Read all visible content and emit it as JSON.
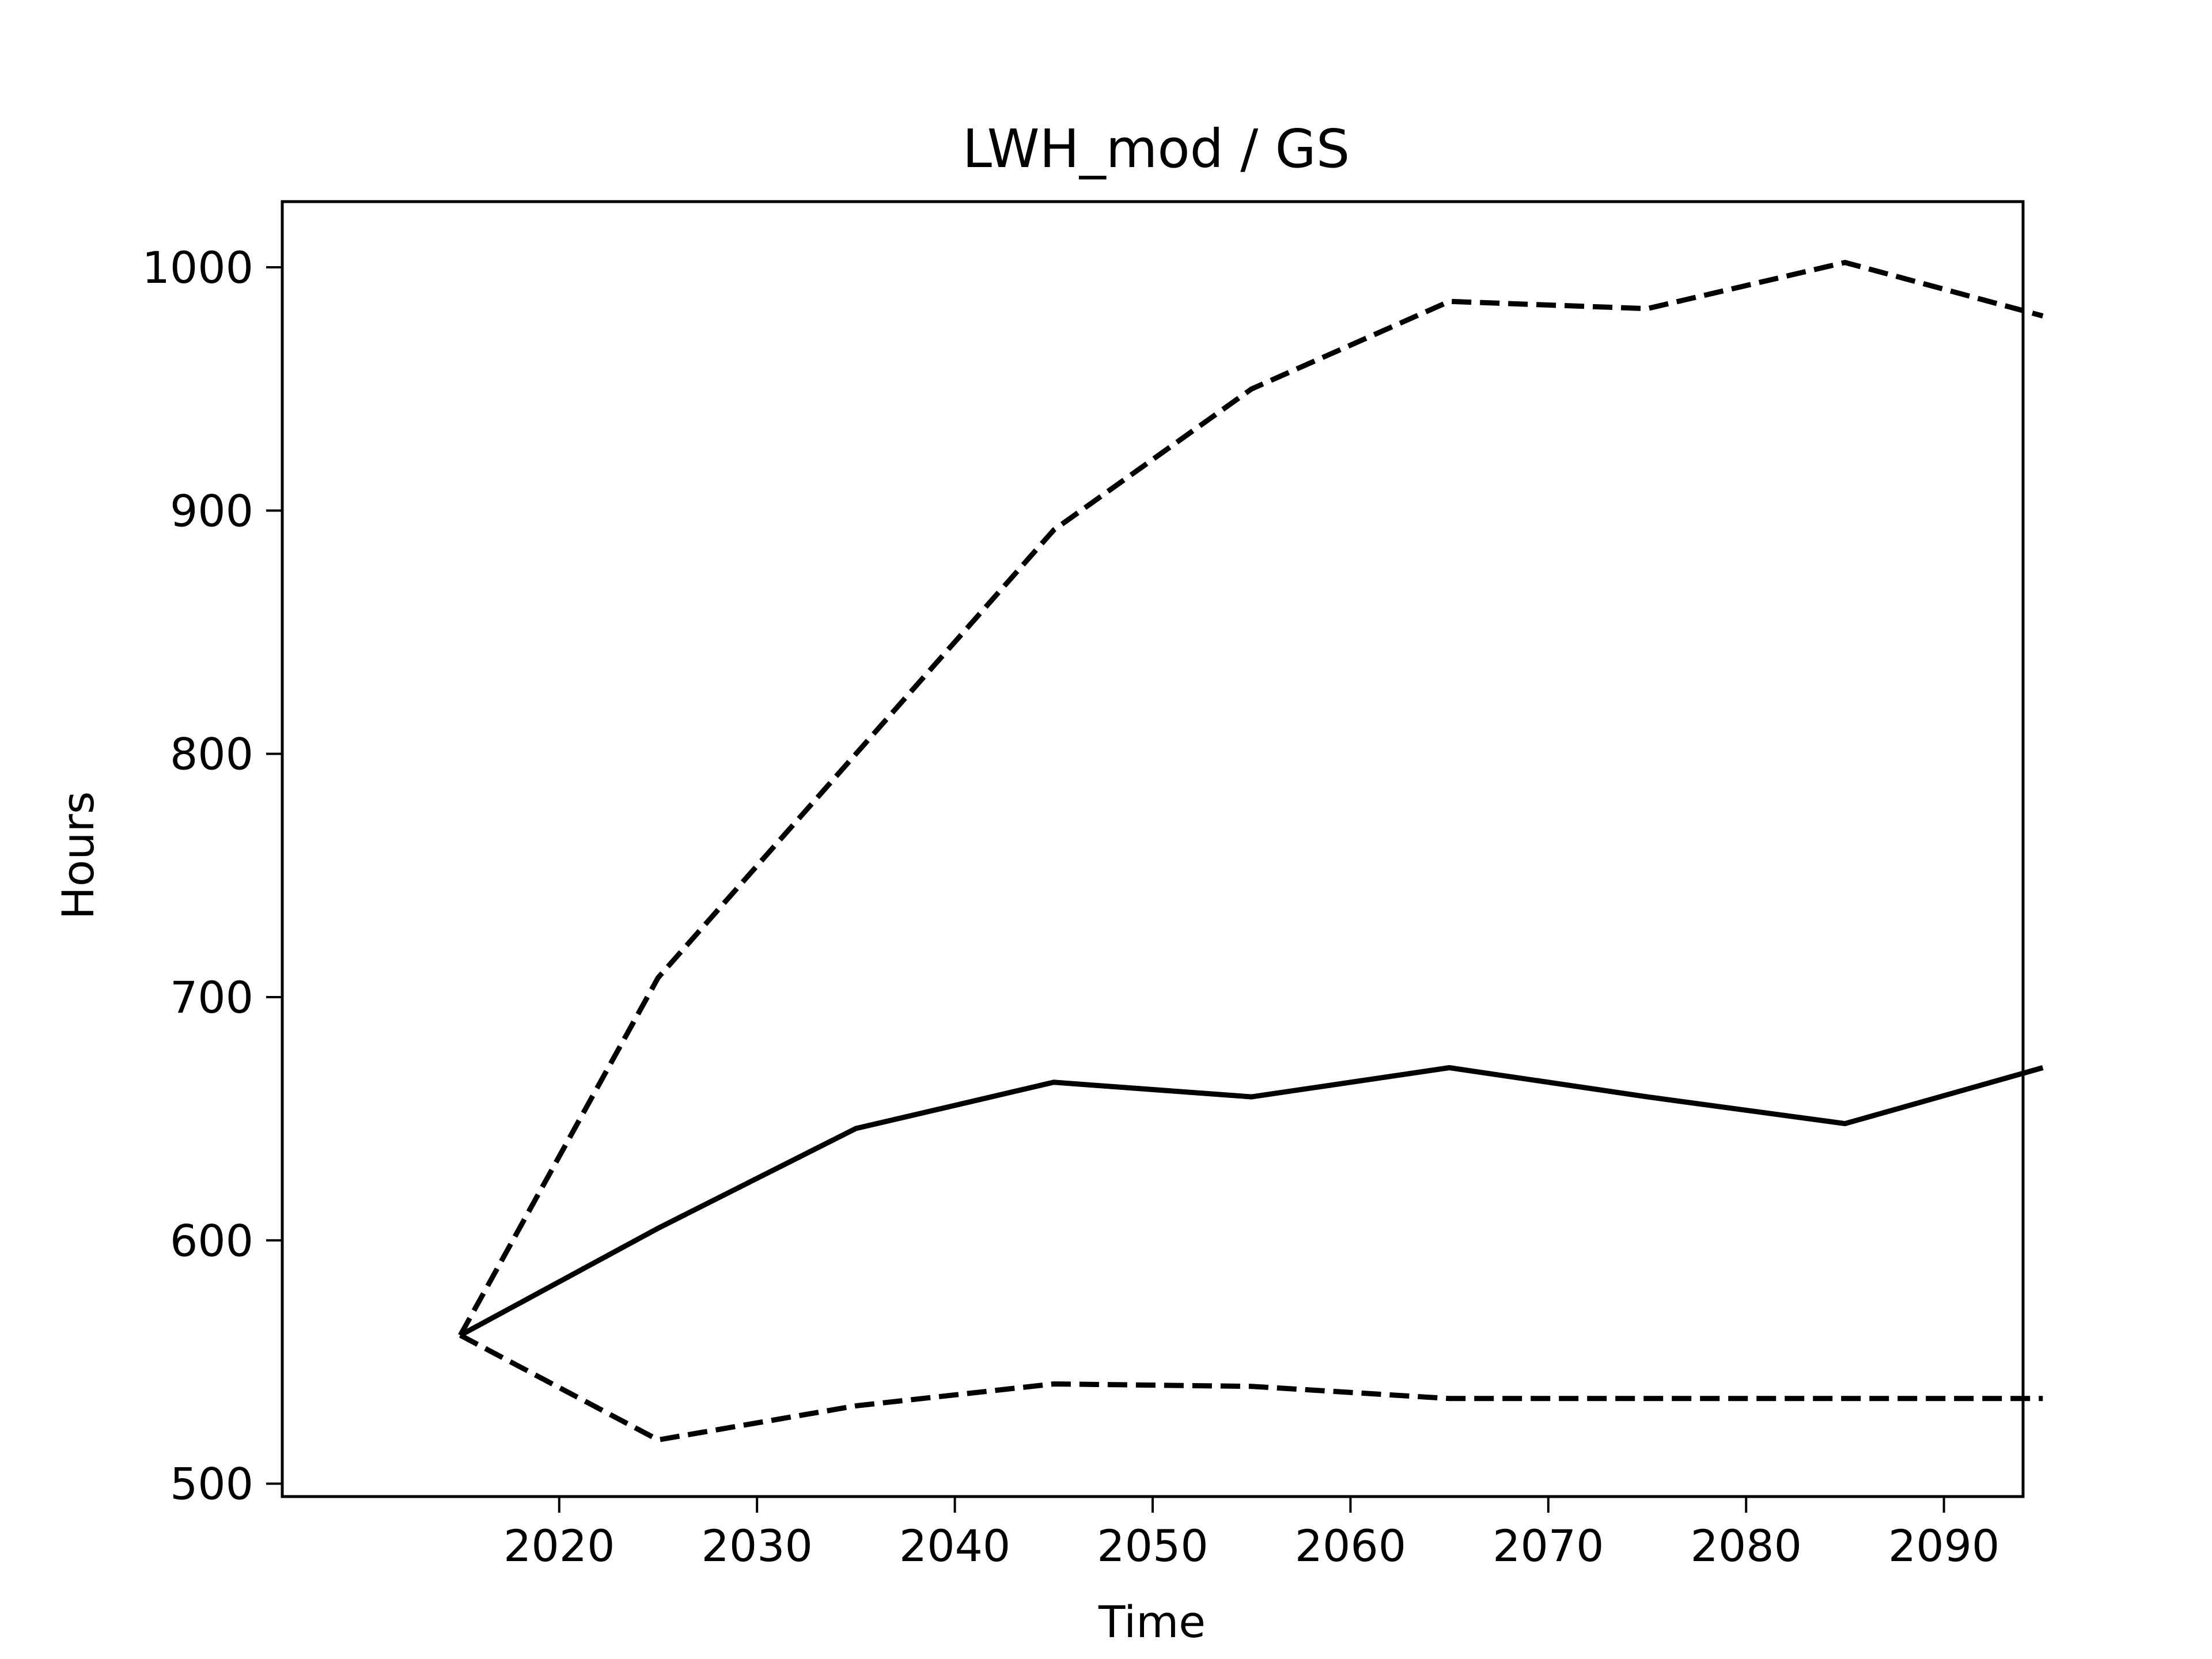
{
  "chart_data": {
    "type": "line",
    "title": "LWH_mod / GS",
    "xlabel": "Time",
    "ylabel": "Hours",
    "x": [
      2015,
      2025,
      2035,
      2045,
      2055,
      2065,
      2075,
      2085,
      2095
    ],
    "series": [
      {
        "style": "solid",
        "values": [
          561,
          605,
          646,
          665,
          659,
          671,
          659,
          648,
          671
        ]
      },
      {
        "style": "dashed",
        "values": [
          561,
          708,
          800,
          892,
          950,
          986,
          983,
          1002,
          980
        ]
      },
      {
        "style": "dashed",
        "values": [
          561,
          518,
          532,
          541,
          540,
          535,
          535,
          535,
          535
        ]
      }
    ],
    "xlim": [
      2006,
      2094
    ],
    "ylim": [
      494.7,
      1027
    ],
    "xticks": [
      2020,
      2030,
      2040,
      2050,
      2060,
      2070,
      2080,
      2090
    ],
    "yticks": [
      500,
      600,
      700,
      800,
      900,
      1000
    ],
    "grid": false,
    "line_color": "#000000"
  }
}
